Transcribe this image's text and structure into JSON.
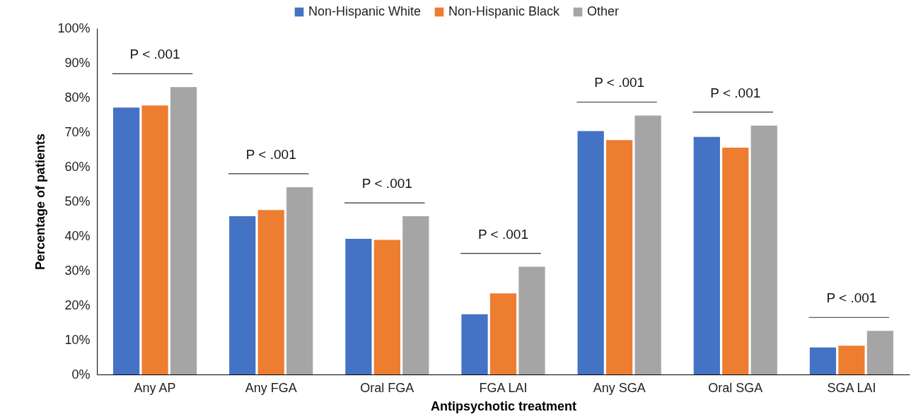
{
  "chart_data": {
    "type": "bar",
    "xlabel": "Antipsychotic treatment",
    "ylabel": "Percentage of patients",
    "categories": [
      "Any AP",
      "Any FGA",
      "Oral FGA",
      "FGA LAI",
      "Any SGA",
      "Oral SGA",
      "SGA LAI"
    ],
    "series": [
      {
        "name": "Non-Hispanic White",
        "color": "#4472c4",
        "values": [
          77.1,
          45.7,
          39.2,
          17.4,
          70.3,
          68.6,
          7.8
        ]
      },
      {
        "name": "Non-Hispanic Black",
        "color": "#ed7d31",
        "values": [
          77.7,
          47.5,
          38.9,
          23.4,
          67.7,
          65.5,
          8.3
        ]
      },
      {
        "name": "Other",
        "color": "#a5a5a5",
        "values": [
          83.0,
          54.1,
          45.7,
          31.1,
          74.8,
          71.9,
          12.6
        ]
      }
    ],
    "ylim": [
      0,
      100
    ],
    "yticks": [
      {
        "value": 0,
        "label": "0%"
      },
      {
        "value": 10,
        "label": "10%"
      },
      {
        "value": 20,
        "label": "20%"
      },
      {
        "value": 30,
        "label": "30%"
      },
      {
        "value": 40,
        "label": "40%"
      },
      {
        "value": 50,
        "label": "50%"
      },
      {
        "value": 60,
        "label": "60%"
      },
      {
        "value": 70,
        "label": "70%"
      },
      {
        "value": 80,
        "label": "80%"
      },
      {
        "value": 90,
        "label": "90%"
      },
      {
        "value": 100,
        "label": "100%"
      }
    ],
    "grid": false,
    "legend": "top",
    "annotations": [
      "P < .001",
      "P < .001",
      "P < .001",
      "P < .001",
      "P < .001",
      "P < .001",
      "P < .001"
    ]
  }
}
